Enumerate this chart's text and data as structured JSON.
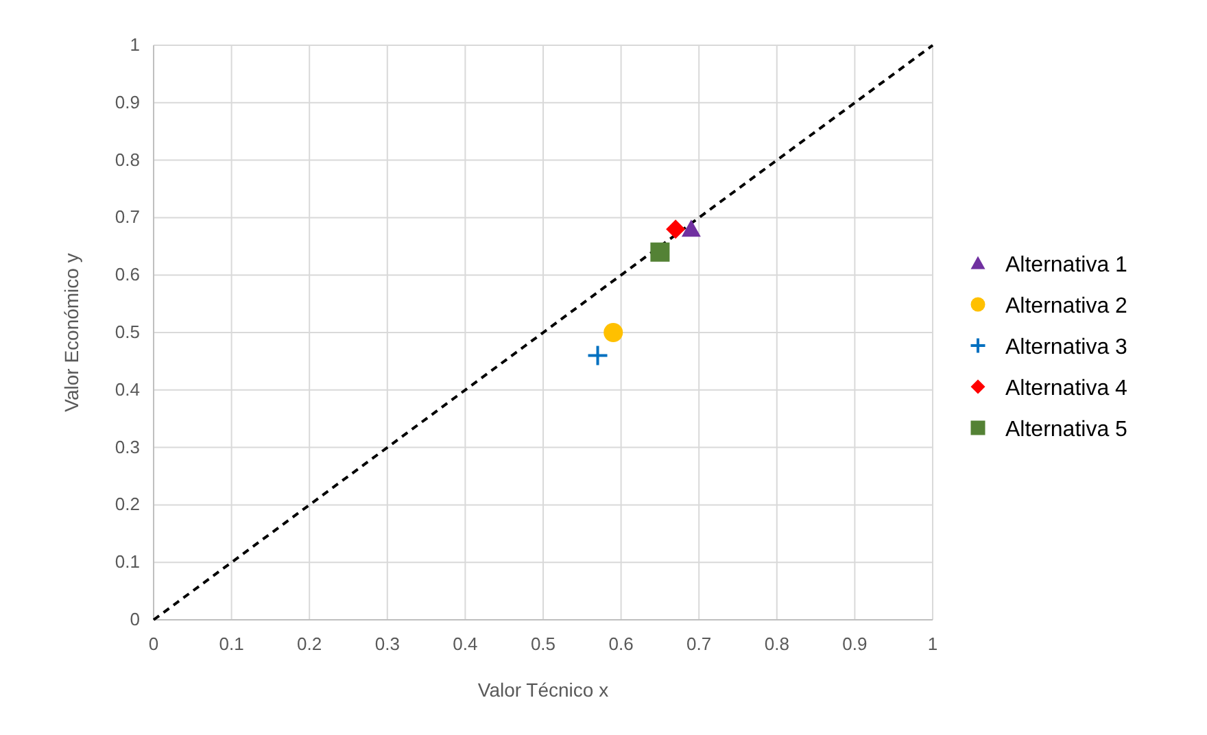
{
  "chart_data": {
    "type": "scatter",
    "xlabel": "Valor Técnico x",
    "ylabel": "Valor Económico y",
    "xlim": [
      0,
      1
    ],
    "ylim": [
      0,
      1
    ],
    "xticks": [
      0,
      0.1,
      0.2,
      0.3,
      0.4,
      0.5,
      0.6,
      0.7,
      0.8,
      0.9,
      1
    ],
    "yticks": [
      0,
      0.1,
      0.2,
      0.3,
      0.4,
      0.5,
      0.6,
      0.7,
      0.8,
      0.9,
      1
    ],
    "grid": true,
    "legend": "right",
    "series": [
      {
        "type": "line",
        "x": [
          0,
          1
        ],
        "values": [
          0,
          1
        ],
        "color": "#000000",
        "line_style": "dashed",
        "marker": "none"
      },
      {
        "name": "Alternativa 1",
        "x": [
          0.69
        ],
        "values": [
          0.68
        ],
        "color": "#7030a0",
        "marker": "triangle"
      },
      {
        "name": "Alternativa 2",
        "x": [
          0.59
        ],
        "values": [
          0.5
        ],
        "color": "#ffc000",
        "marker": "circle"
      },
      {
        "name": "Alternativa 3",
        "x": [
          0.57
        ],
        "values": [
          0.46
        ],
        "color": "#0070c0",
        "marker": "cross"
      },
      {
        "name": "Alternativa 4",
        "x": [
          0.67
        ],
        "values": [
          0.68
        ],
        "color": "#ff0000",
        "marker": "diamond"
      },
      {
        "name": "Alternativa 5",
        "x": [
          0.65
        ],
        "values": [
          0.64
        ],
        "color": "#548235",
        "marker": "square"
      }
    ]
  }
}
